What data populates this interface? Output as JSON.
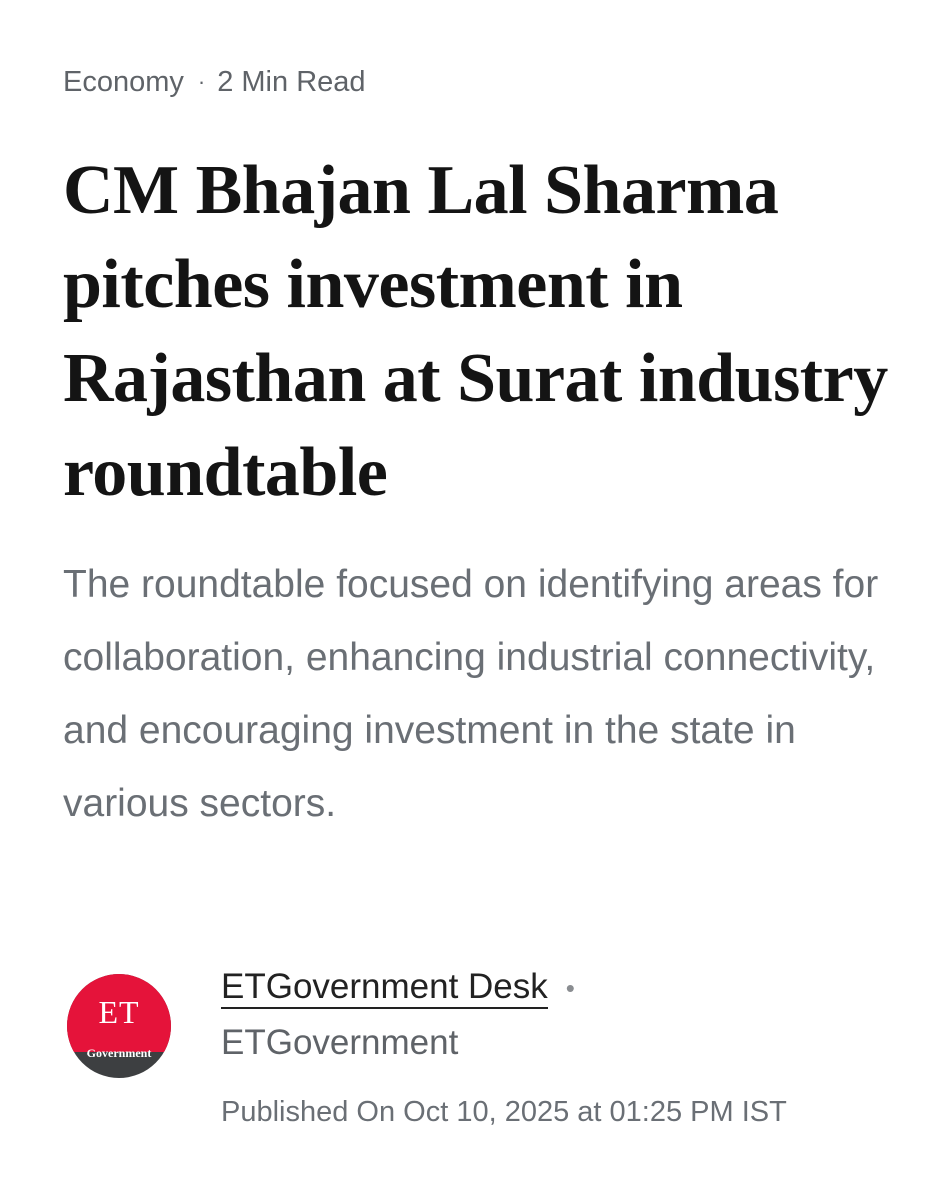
{
  "article": {
    "category": "Economy",
    "separator": "·",
    "read_time": "2 Min Read",
    "headline": "CM Bhajan Lal Sharma pitches investment in Rajasthan at Surat industry roundtable",
    "summary": "The roundtable focused on identifying areas for collaboration, enhancing industrial connectivity, and encouraging investment in the state in various sectors."
  },
  "byline": {
    "logo": {
      "text": "ET",
      "subtext": "Government",
      "colors": {
        "top": "#e5133a",
        "bottom": "#3d3f41"
      }
    },
    "author": "ETGovernment Desk",
    "author_separator": "•",
    "publisher": "ETGovernment",
    "published": "Published On Oct 10, 2025 at 01:25 PM IST"
  }
}
